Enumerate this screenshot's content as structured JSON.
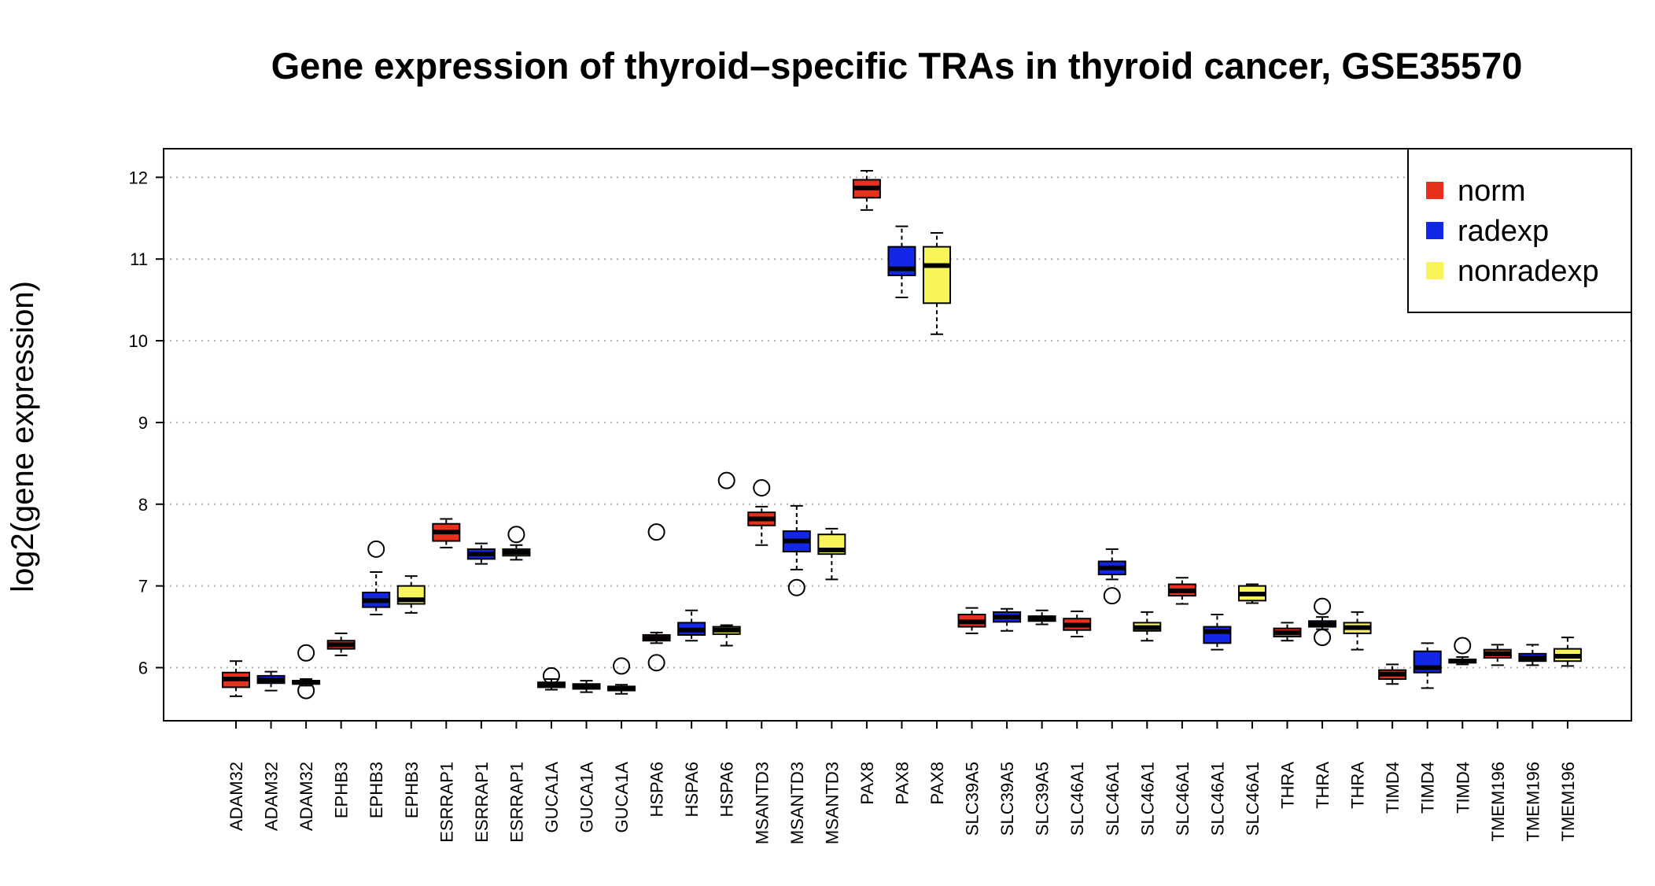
{
  "chart_data": {
    "type": "boxplot",
    "title": "Gene expression of thyroid–specific TRAs in thyroid cancer, GSE35570",
    "xlabel": "",
    "ylabel": "log2(gene expression)",
    "ylim": [
      5.35,
      12.35
    ],
    "yticks": [
      6,
      7,
      8,
      9,
      10,
      11,
      12
    ],
    "grid": "horizontal dotted",
    "legend": {
      "position": "top-right",
      "entries": [
        {
          "name": "norm",
          "color": "#e8311d"
        },
        {
          "name": "radexp",
          "color": "#1227e8"
        },
        {
          "name": "nonradexp",
          "color": "#f7f55a"
        }
      ]
    },
    "categories": [
      "ADAM32",
      "ADAM32",
      "ADAM32",
      "EPHB3",
      "EPHB3",
      "EPHB3",
      "ESRRAP1",
      "ESRRAP1",
      "ESRRAP1",
      "GUCA1A",
      "GUCA1A",
      "GUCA1A",
      "HSPA6",
      "HSPA6",
      "HSPA6",
      "MSANTD3",
      "MSANTD3",
      "MSANTD3",
      "PAX8",
      "PAX8",
      "PAX8",
      "SLC39A5",
      "SLC39A5",
      "SLC39A5",
      "SLC46A1",
      "SLC46A1",
      "SLC46A1",
      "SLC46A1",
      "SLC46A1",
      "SLC46A1",
      "THRA",
      "THRA",
      "THRA",
      "TIMD4",
      "TIMD4",
      "TIMD4",
      "TMEM196",
      "TMEM196",
      "TMEM196"
    ],
    "groups": [
      "norm",
      "radexp",
      "nonradexp",
      "norm",
      "radexp",
      "nonradexp",
      "norm",
      "radexp",
      "nonradexp",
      "norm",
      "radexp",
      "nonradexp",
      "norm",
      "radexp",
      "nonradexp",
      "norm",
      "radexp",
      "nonradexp",
      "norm",
      "radexp",
      "nonradexp",
      "norm",
      "radexp",
      "nonradexp",
      "norm",
      "radexp",
      "nonradexp",
      "norm",
      "radexp",
      "nonradexp",
      "norm",
      "radexp",
      "nonradexp",
      "norm",
      "radexp",
      "nonradexp",
      "norm",
      "radexp",
      "nonradexp"
    ],
    "boxes": [
      {
        "wlo": 5.65,
        "q1": 5.76,
        "med": 5.86,
        "q3": 5.94,
        "whi": 6.08,
        "out": []
      },
      {
        "wlo": 5.72,
        "q1": 5.81,
        "med": 5.85,
        "q3": 5.9,
        "whi": 5.95,
        "out": []
      },
      {
        "wlo": 5.78,
        "q1": 5.8,
        "med": 5.82,
        "q3": 5.84,
        "whi": 5.86,
        "out": [
          6.18,
          5.72
        ]
      },
      {
        "wlo": 6.15,
        "q1": 6.23,
        "med": 6.28,
        "q3": 6.33,
        "whi": 6.42,
        "out": []
      },
      {
        "wlo": 6.65,
        "q1": 6.74,
        "med": 6.82,
        "q3": 6.92,
        "whi": 7.17,
        "out": [
          7.45
        ]
      },
      {
        "wlo": 6.67,
        "q1": 6.78,
        "med": 6.83,
        "q3": 7.0,
        "whi": 7.12,
        "out": []
      },
      {
        "wlo": 7.47,
        "q1": 7.55,
        "med": 7.66,
        "q3": 7.76,
        "whi": 7.82,
        "out": []
      },
      {
        "wlo": 7.27,
        "q1": 7.33,
        "med": 7.39,
        "q3": 7.45,
        "whi": 7.52,
        "out": []
      },
      {
        "wlo": 7.32,
        "q1": 7.37,
        "med": 7.41,
        "q3": 7.45,
        "whi": 7.5,
        "out": [
          7.63
        ]
      },
      {
        "wlo": 5.73,
        "q1": 5.76,
        "med": 5.79,
        "q3": 5.82,
        "whi": 5.86,
        "out": [
          5.9
        ]
      },
      {
        "wlo": 5.7,
        "q1": 5.74,
        "med": 5.77,
        "q3": 5.8,
        "whi": 5.84,
        "out": []
      },
      {
        "wlo": 5.68,
        "q1": 5.72,
        "med": 5.74,
        "q3": 5.77,
        "whi": 5.79,
        "out": [
          6.02
        ]
      },
      {
        "wlo": 6.3,
        "q1": 6.33,
        "med": 6.36,
        "q3": 6.4,
        "whi": 6.43,
        "out": [
          7.66,
          6.06
        ]
      },
      {
        "wlo": 6.33,
        "q1": 6.4,
        "med": 6.46,
        "q3": 6.55,
        "whi": 6.7,
        "out": []
      },
      {
        "wlo": 6.27,
        "q1": 6.41,
        "med": 6.46,
        "q3": 6.5,
        "whi": 6.52,
        "out": [
          8.29
        ]
      },
      {
        "wlo": 7.5,
        "q1": 7.74,
        "med": 7.82,
        "q3": 7.9,
        "whi": 7.97,
        "out": [
          8.2
        ]
      },
      {
        "wlo": 7.2,
        "q1": 7.42,
        "med": 7.55,
        "q3": 7.67,
        "whi": 7.98,
        "out": [
          6.98
        ]
      },
      {
        "wlo": 7.08,
        "q1": 7.39,
        "med": 7.44,
        "q3": 7.63,
        "whi": 7.7,
        "out": []
      },
      {
        "wlo": 11.6,
        "q1": 11.75,
        "med": 11.87,
        "q3": 11.97,
        "whi": 12.08,
        "out": []
      },
      {
        "wlo": 10.53,
        "q1": 10.8,
        "med": 10.88,
        "q3": 11.15,
        "whi": 11.4,
        "out": []
      },
      {
        "wlo": 10.08,
        "q1": 10.46,
        "med": 10.92,
        "q3": 11.15,
        "whi": 11.32,
        "out": []
      },
      {
        "wlo": 6.42,
        "q1": 6.5,
        "med": 6.56,
        "q3": 6.65,
        "whi": 6.73,
        "out": []
      },
      {
        "wlo": 6.45,
        "q1": 6.56,
        "med": 6.62,
        "q3": 6.68,
        "whi": 6.72,
        "out": []
      },
      {
        "wlo": 6.53,
        "q1": 6.57,
        "med": 6.6,
        "q3": 6.63,
        "whi": 6.7,
        "out": []
      },
      {
        "wlo": 6.38,
        "q1": 6.46,
        "med": 6.52,
        "q3": 6.6,
        "whi": 6.69,
        "out": []
      },
      {
        "wlo": 7.08,
        "q1": 7.14,
        "med": 7.22,
        "q3": 7.3,
        "whi": 7.45,
        "out": [
          6.88
        ]
      },
      {
        "wlo": 6.33,
        "q1": 6.45,
        "med": 6.49,
        "q3": 6.55,
        "whi": 6.68,
        "out": []
      },
      {
        "wlo": 6.78,
        "q1": 6.88,
        "med": 6.94,
        "q3": 7.02,
        "whi": 7.1,
        "out": []
      },
      {
        "wlo": 6.22,
        "q1": 6.3,
        "med": 6.44,
        "q3": 6.5,
        "whi": 6.65,
        "out": []
      },
      {
        "wlo": 6.79,
        "q1": 6.82,
        "med": 6.9,
        "q3": 7.0,
        "whi": 7.02,
        "out": []
      },
      {
        "wlo": 6.33,
        "q1": 6.38,
        "med": 6.43,
        "q3": 6.48,
        "whi": 6.55,
        "out": []
      },
      {
        "wlo": 6.47,
        "q1": 6.5,
        "med": 6.53,
        "q3": 6.57,
        "whi": 6.62,
        "out": [
          6.75,
          6.37
        ]
      },
      {
        "wlo": 6.22,
        "q1": 6.42,
        "med": 6.49,
        "q3": 6.55,
        "whi": 6.68,
        "out": []
      },
      {
        "wlo": 5.8,
        "q1": 5.86,
        "med": 5.92,
        "q3": 5.97,
        "whi": 6.04,
        "out": []
      },
      {
        "wlo": 5.75,
        "q1": 5.94,
        "med": 6.0,
        "q3": 6.2,
        "whi": 6.3,
        "out": []
      },
      {
        "wlo": 6.04,
        "q1": 6.06,
        "med": 6.08,
        "q3": 6.1,
        "whi": 6.13,
        "out": [
          6.27
        ]
      },
      {
        "wlo": 6.03,
        "q1": 6.12,
        "med": 6.17,
        "q3": 6.22,
        "whi": 6.28,
        "out": []
      },
      {
        "wlo": 6.03,
        "q1": 6.08,
        "med": 6.12,
        "q3": 6.17,
        "whi": 6.28,
        "out": []
      },
      {
        "wlo": 6.02,
        "q1": 6.08,
        "med": 6.14,
        "q3": 6.23,
        "whi": 6.37,
        "out": []
      }
    ]
  }
}
